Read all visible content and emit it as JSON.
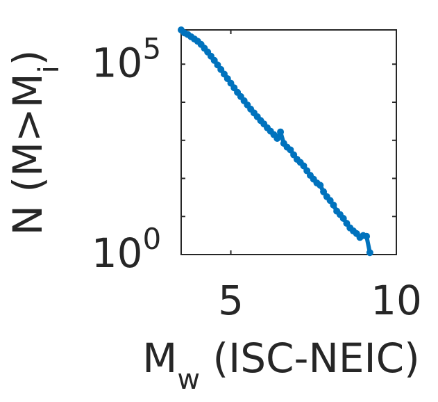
{
  "chart_data": {
    "type": "scatter",
    "title": "",
    "xlabel": {
      "base": "M",
      "sub": "w",
      "rest": " (ISC-NEIC)"
    },
    "ylabel": {
      "base": "N (M>M",
      "sub": "i",
      "rest": ")"
    },
    "xlim": [
      3.5,
      10
    ],
    "ylim_log10": [
      0,
      5.9
    ],
    "y_scale": "log",
    "x_ticks": [
      {
        "value": 5,
        "label": "5"
      },
      {
        "value": 10,
        "label": "10"
      }
    ],
    "y_ticks": [
      {
        "exp": 0,
        "base": "10",
        "sup": "0"
      },
      {
        "exp": 5,
        "base": "10",
        "sup": "5"
      }
    ],
    "grid": false,
    "series": [
      {
        "color": "#0072BD",
        "x": [
          3.5,
          3.6,
          3.7,
          3.8,
          3.9,
          4.0,
          4.1,
          4.2,
          4.3,
          4.4,
          4.5,
          4.6,
          4.7,
          4.8,
          4.9,
          5.0,
          5.1,
          5.2,
          5.3,
          5.4,
          5.5,
          5.6,
          5.7,
          5.8,
          5.9,
          6.0,
          6.1,
          6.2,
          6.3,
          6.4,
          6.5,
          6.6,
          6.7,
          6.8,
          6.9,
          7.0,
          7.1,
          7.2,
          7.3,
          7.4,
          7.5,
          7.6,
          7.7,
          7.8,
          7.9,
          8.0,
          8.1,
          8.2,
          8.3,
          8.4,
          8.5,
          8.6,
          8.7,
          8.8,
          8.9,
          9.0,
          9.1,
          9.2
        ],
        "log10_y": [
          5.9,
          5.82,
          5.78,
          5.72,
          5.66,
          5.6,
          5.52,
          5.42,
          5.32,
          5.21,
          5.1,
          4.98,
          4.86,
          4.74,
          4.62,
          4.5,
          4.38,
          4.26,
          4.15,
          4.04,
          3.93,
          3.82,
          3.72,
          3.62,
          3.52,
          3.43,
          3.33,
          3.24,
          3.15,
          3.05,
          3.22,
          2.92,
          2.82,
          2.75,
          2.62,
          2.5,
          2.42,
          2.33,
          2.2,
          2.08,
          1.98,
          1.88,
          1.82,
          1.65,
          1.52,
          1.42,
          1.3,
          1.14,
          1.05,
          0.95,
          0.82,
          0.7,
          0.62,
          0.55,
          0.45,
          0.5,
          0.48,
          0.05
        ]
      }
    ]
  }
}
